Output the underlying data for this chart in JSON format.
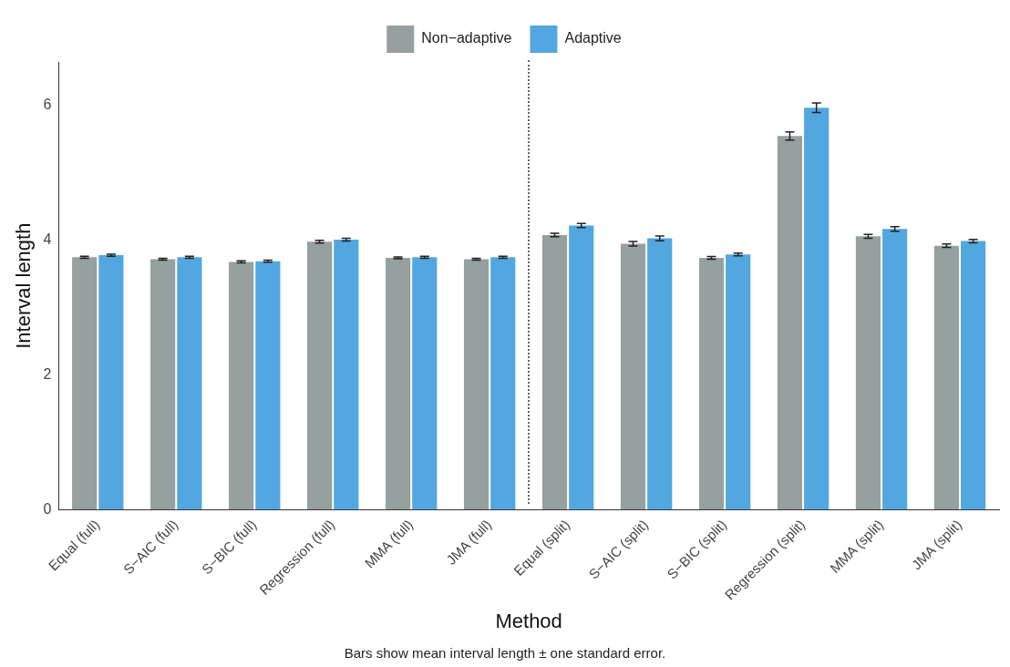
{
  "chart_data": {
    "type": "bar",
    "xlabel": "Method",
    "ylabel": "Interval length",
    "categories": [
      "Equal (full)",
      "S−AIC (full)",
      "S−BIC (full)",
      "Regression (full)",
      "MMA (full)",
      "JMA (full)",
      "Equal (split)",
      "S−AIC (split)",
      "S−BIC (split)",
      "Regression (split)",
      "MMA (split)",
      "JMA (split)"
    ],
    "series": [
      {
        "name": "Non−adaptive",
        "color": "#95a09f",
        "values": [
          3.75,
          3.72,
          3.68,
          3.98,
          3.74,
          3.72,
          4.08,
          3.95,
          3.74,
          5.55,
          4.06,
          3.92
        ],
        "errors": [
          0.015,
          0.015,
          0.015,
          0.02,
          0.015,
          0.015,
          0.025,
          0.035,
          0.02,
          0.06,
          0.03,
          0.025
        ]
      },
      {
        "name": "Adaptive",
        "color": "#53a7e0",
        "values": [
          3.78,
          3.75,
          3.69,
          4.01,
          3.75,
          3.75,
          4.22,
          4.03,
          3.79,
          5.97,
          4.17,
          3.99
        ],
        "errors": [
          0.015,
          0.015,
          0.015,
          0.02,
          0.015,
          0.015,
          0.03,
          0.035,
          0.02,
          0.07,
          0.035,
          0.025
        ]
      }
    ],
    "ylim": [
      0,
      6.65
    ],
    "yticks": [
      0,
      2,
      4,
      6
    ],
    "grid": false,
    "legend": "top",
    "annotations": [
      "Bars show mean interval length ± one standard error."
    ]
  }
}
